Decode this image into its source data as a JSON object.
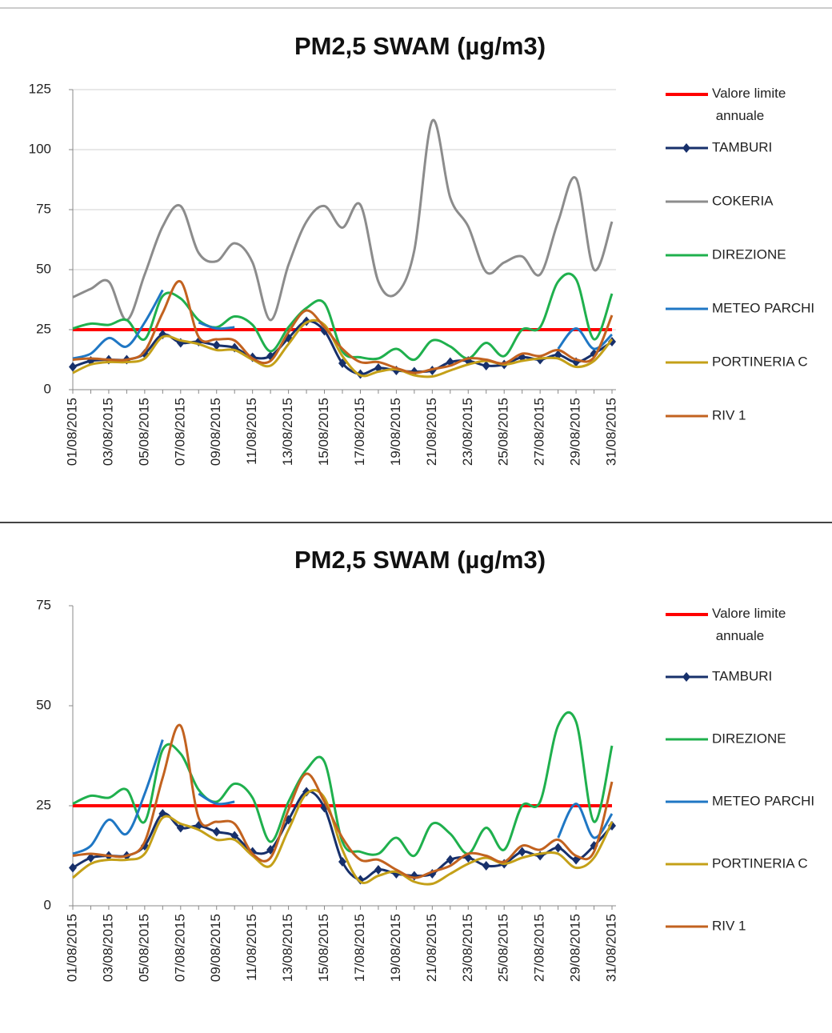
{
  "chart_data": [
    {
      "type": "line",
      "title": "PM2,5 SWAM  (µg/m3)",
      "categories": [
        "01/08/2015",
        null,
        "03/08/2015",
        null,
        "05/08/2015",
        null,
        "07/08/2015",
        null,
        "09/08/2015",
        null,
        "11/08/2015",
        null,
        "13/08/2015",
        null,
        "15/08/2015",
        null,
        "17/08/2015",
        null,
        "19/08/2015",
        null,
        "21/08/2015",
        null,
        "23/08/2015",
        null,
        "25/08/2015",
        null,
        "27/08/2015",
        null,
        "29/08/2015",
        null,
        "31/08/2015"
      ],
      "ylim": [
        0,
        125
      ],
      "yticks": [
        0,
        25,
        50,
        75,
        100,
        125
      ],
      "grid": true,
      "legend": "right",
      "series": [
        {
          "name": "Valore limite annuale",
          "color": "#ff0000",
          "values": [
            25,
            25,
            25,
            25,
            25,
            25,
            25,
            25,
            25,
            25,
            25,
            25,
            25,
            25,
            25,
            25,
            25,
            25,
            25,
            25,
            25,
            25,
            25,
            25,
            25,
            25,
            25,
            25,
            25,
            25,
            25
          ]
        },
        {
          "name": "TAMBURI",
          "color": "#17306b",
          "marker": "diamond",
          "values": [
            9.5,
            12,
            12.5,
            12.5,
            15,
            23,
            19.5,
            20,
            18.5,
            17.5,
            13.5,
            14,
            21.5,
            28.5,
            24.5,
            11,
            6.5,
            9,
            8,
            7.5,
            8,
            11.5,
            12,
            10,
            10.5,
            13.5,
            12.5,
            14.5,
            11.5,
            15,
            20
          ]
        },
        {
          "name": "COKERIA",
          "color": "#8c8c8c",
          "values": [
            38.5,
            42,
            45,
            29,
            48,
            68,
            76.5,
            57,
            53.5,
            61,
            53,
            29,
            52,
            70,
            76.5,
            67.5,
            77,
            45,
            40,
            58,
            112,
            80,
            68,
            49,
            53,
            55.5,
            48,
            70,
            88,
            50,
            70
          ]
        },
        {
          "name": "DIREZIONE",
          "color": "#1fb04d",
          "values": [
            25.5,
            27.5,
            27,
            29,
            21,
            39,
            38,
            29,
            26,
            30.5,
            27,
            16,
            26,
            34,
            36,
            16,
            13.5,
            13,
            17,
            12.5,
            20.5,
            18,
            13,
            19.5,
            14,
            25,
            26,
            45,
            46,
            21,
            40
          ]
        },
        {
          "name": "METEO PARCHI",
          "color": "#1f77c4",
          "values": [
            13,
            15,
            21.5,
            18,
            28,
            41.5,
            null,
            28,
            25.5,
            26,
            null,
            null,
            null,
            null,
            null,
            null,
            null,
            null,
            null,
            null,
            null,
            null,
            null,
            null,
            null,
            null,
            null,
            17,
            25.5,
            17,
            23
          ]
        },
        {
          "name": "PORTINERIA C",
          "color": "#c4a018",
          "values": [
            7,
            10.5,
            11.5,
            11.5,
            13,
            22,
            20.5,
            19,
            16.5,
            16.5,
            12.5,
            10,
            19,
            28,
            27,
            14,
            6,
            7.5,
            8.5,
            6,
            5.5,
            8,
            10.5,
            12,
            10.5,
            12,
            13,
            13,
            9.5,
            12,
            21
          ]
        },
        {
          "name": "RIV 1",
          "color": "#c2621f",
          "values": [
            12.5,
            13,
            12.5,
            12.5,
            16,
            32,
            45,
            22,
            21,
            20.5,
            13,
            12,
            24,
            33,
            26,
            17,
            11.5,
            11.5,
            9,
            7,
            8.5,
            10,
            13,
            12.5,
            11,
            15,
            14,
            16.5,
            12.5,
            13.5,
            31
          ]
        }
      ]
    },
    {
      "type": "line",
      "title": "PM2,5 SWAM  (µg/m3)",
      "categories": [
        "01/08/2015",
        null,
        "03/08/2015",
        null,
        "05/08/2015",
        null,
        "07/08/2015",
        null,
        "09/08/2015",
        null,
        "11/08/2015",
        null,
        "13/08/2015",
        null,
        "15/08/2015",
        null,
        "17/08/2015",
        null,
        "19/08/2015",
        null,
        "21/08/2015",
        null,
        "23/08/2015",
        null,
        "25/08/2015",
        null,
        "27/08/2015",
        null,
        "29/08/2015",
        null,
        "31/08/2015"
      ],
      "ylim": [
        0,
        75
      ],
      "yticks": [
        0,
        25,
        50,
        75
      ],
      "grid": false,
      "legend": "right",
      "series": [
        {
          "name": "Valore limite annuale",
          "color": "#ff0000",
          "values": [
            25,
            25,
            25,
            25,
            25,
            25,
            25,
            25,
            25,
            25,
            25,
            25,
            25,
            25,
            25,
            25,
            25,
            25,
            25,
            25,
            25,
            25,
            25,
            25,
            25,
            25,
            25,
            25,
            25,
            25,
            25
          ]
        },
        {
          "name": "TAMBURI",
          "color": "#17306b",
          "marker": "diamond",
          "values": [
            9.5,
            12,
            12.5,
            12.5,
            15,
            23,
            19.5,
            20,
            18.5,
            17.5,
            13.5,
            14,
            21.5,
            28.5,
            24.5,
            11,
            6.5,
            9,
            8,
            7.5,
            8,
            11.5,
            12,
            10,
            10.5,
            13.5,
            12.5,
            14.5,
            11.5,
            15,
            20
          ]
        },
        {
          "name": "DIREZIONE",
          "color": "#1fb04d",
          "values": [
            25.5,
            27.5,
            27,
            29,
            21,
            39,
            38,
            29,
            26,
            30.5,
            27,
            16,
            26,
            34,
            36,
            16,
            13.5,
            13,
            17,
            12.5,
            20.5,
            18,
            13,
            19.5,
            14,
            25,
            26,
            45,
            46,
            21,
            40
          ]
        },
        {
          "name": "METEO PARCHI",
          "color": "#1f77c4",
          "values": [
            13,
            15,
            21.5,
            18,
            28,
            41.5,
            null,
            28,
            25.5,
            26,
            null,
            null,
            null,
            null,
            null,
            null,
            null,
            null,
            null,
            null,
            null,
            null,
            null,
            null,
            null,
            null,
            null,
            17,
            25.5,
            17,
            23
          ]
        },
        {
          "name": "PORTINERIA C",
          "color": "#c4a018",
          "values": [
            7,
            10.5,
            11.5,
            11.5,
            13,
            22,
            20.5,
            19,
            16.5,
            16.5,
            12.5,
            10,
            19,
            28,
            27,
            14,
            6,
            7.5,
            8.5,
            6,
            5.5,
            8,
            10.5,
            12,
            10.5,
            12,
            13,
            13,
            9.5,
            12,
            21
          ]
        },
        {
          "name": "RIV 1",
          "color": "#c2621f",
          "values": [
            12.5,
            13,
            12.5,
            12.5,
            16,
            32,
            45,
            22,
            21,
            20.5,
            13,
            12,
            24,
            33,
            26,
            17,
            11.5,
            11.5,
            9,
            7,
            8.5,
            10,
            13,
            12.5,
            11,
            15,
            14,
            16.5,
            12.5,
            13.5,
            31
          ]
        }
      ]
    }
  ]
}
